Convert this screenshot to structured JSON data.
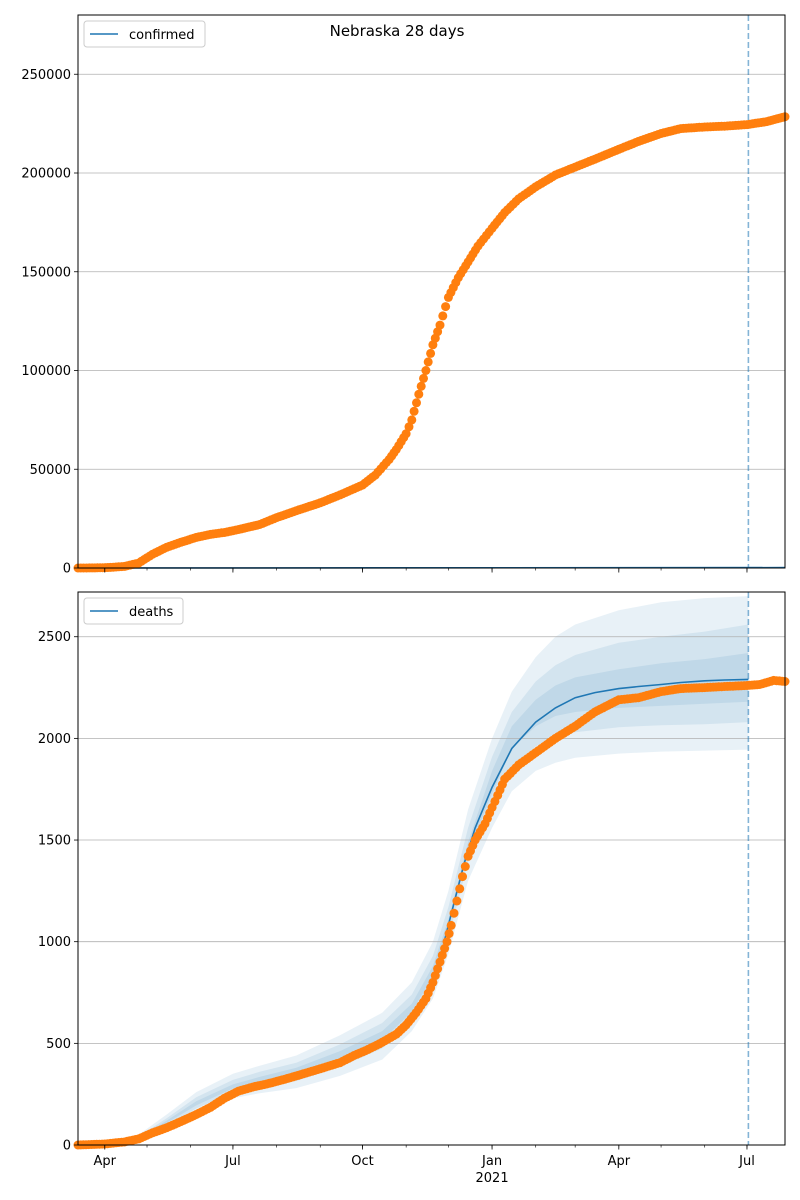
{
  "chart_data": {
    "type": "scatter",
    "title": "Nebraska 28 days",
    "x_ticks": [
      "Apr",
      "Jul",
      "Oct",
      "Jan",
      "Apr",
      "Jul"
    ],
    "x_tick_year": "2021",
    "x_range": [
      "2020-03-13",
      "2021-07-28"
    ],
    "forecast_date": "2021-07-02",
    "colors": {
      "observed": "#ff7f0e",
      "model": "#1f77b4",
      "band": "#1f77b4",
      "grid": "#b0b0b0",
      "forecast_line": "#1f77b4"
    },
    "panels": [
      {
        "metric": "confirmed",
        "legend": "confirmed",
        "ylim": [
          0,
          280000
        ],
        "yticks": [
          "0",
          "50000",
          "100000",
          "150000",
          "200000",
          "250000"
        ],
        "grid": "horizontal",
        "model_line": [
          [
            "2020-03-13",
            0
          ],
          [
            "2021-07-28",
            200
          ]
        ],
        "observed": [
          [
            "2020-03-13",
            0
          ],
          [
            "2020-03-25",
            50
          ],
          [
            "2020-04-05",
            300
          ],
          [
            "2020-04-15",
            800
          ],
          [
            "2020-04-25",
            2500
          ],
          [
            "2020-05-05",
            7000
          ],
          [
            "2020-05-15",
            10500
          ],
          [
            "2020-05-25",
            13000
          ],
          [
            "2020-06-05",
            15500
          ],
          [
            "2020-06-15",
            17000
          ],
          [
            "2020-06-25",
            18000
          ],
          [
            "2020-07-05",
            19500
          ],
          [
            "2020-07-20",
            22000
          ],
          [
            "2020-08-01",
            25500
          ],
          [
            "2020-08-15",
            29000
          ],
          [
            "2020-09-01",
            33000
          ],
          [
            "2020-09-15",
            37000
          ],
          [
            "2020-10-01",
            42000
          ],
          [
            "2020-10-10",
            47000
          ],
          [
            "2020-10-20",
            55000
          ],
          [
            "2020-10-25",
            60000
          ],
          [
            "2020-11-01",
            68000
          ],
          [
            "2020-11-05",
            75000
          ],
          [
            "2020-11-10",
            88000
          ],
          [
            "2020-11-15",
            100000
          ],
          [
            "2020-11-20",
            113000
          ],
          [
            "2020-11-25",
            123000
          ],
          [
            "2020-12-01",
            137000
          ],
          [
            "2020-12-08",
            147000
          ],
          [
            "2020-12-15",
            155000
          ],
          [
            "2020-12-22",
            163000
          ],
          [
            "2021-01-01",
            172000
          ],
          [
            "2021-01-10",
            180000
          ],
          [
            "2021-01-20",
            187000
          ],
          [
            "2021-02-01",
            193000
          ],
          [
            "2021-02-15",
            199000
          ],
          [
            "2021-03-01",
            203000
          ],
          [
            "2021-03-15",
            207000
          ],
          [
            "2021-04-01",
            212000
          ],
          [
            "2021-04-15",
            216000
          ],
          [
            "2021-05-01",
            220000
          ],
          [
            "2021-05-15",
            222500
          ],
          [
            "2021-06-01",
            223300
          ],
          [
            "2021-06-15",
            223700
          ],
          [
            "2021-07-01",
            224500
          ],
          [
            "2021-07-15",
            226000
          ],
          [
            "2021-07-28",
            228500
          ]
        ]
      },
      {
        "metric": "deaths",
        "legend": "deaths",
        "ylim": [
          0,
          2720
        ],
        "yticks": [
          "0",
          "500",
          "1000",
          "1500",
          "2000",
          "2500"
        ],
        "grid": "horizontal",
        "model_line": [
          [
            "2020-11-28",
            1000
          ],
          [
            "2020-12-05",
            1190
          ],
          [
            "2020-12-12",
            1380
          ],
          [
            "2020-12-20",
            1560
          ],
          [
            "2021-01-01",
            1760
          ],
          [
            "2021-01-15",
            1950
          ],
          [
            "2021-02-01",
            2080
          ],
          [
            "2021-02-15",
            2150
          ],
          [
            "2021-03-01",
            2200
          ],
          [
            "2021-03-15",
            2225
          ],
          [
            "2021-04-01",
            2245
          ],
          [
            "2021-04-15",
            2255
          ],
          [
            "2021-05-01",
            2265
          ],
          [
            "2021-05-15",
            2275
          ],
          [
            "2021-06-01",
            2283
          ],
          [
            "2021-06-15",
            2287
          ],
          [
            "2021-07-02",
            2290
          ]
        ],
        "bands": [
          {
            "level": "outer",
            "dates": [
              "2020-04-25",
              "2020-05-15",
              "2020-06-05",
              "2020-07-01",
              "2020-07-20",
              "2020-08-15",
              "2020-09-15",
              "2020-10-15",
              "2020-11-05",
              "2020-11-20",
              "2020-12-01",
              "2020-12-15",
              "2021-01-01",
              "2021-01-15",
              "2021-02-01",
              "2021-02-15",
              "2021-03-01",
              "2021-04-01",
              "2021-05-01",
              "2021-06-01",
              "2021-07-02"
            ],
            "upper": [
              50,
              150,
              260,
              350,
              390,
              440,
              540,
              650,
              800,
              1000,
              1250,
              1650,
              2000,
              2230,
              2400,
              2500,
              2560,
              2630,
              2670,
              2690,
              2700
            ],
            "lower": [
              20,
              80,
              160,
              230,
              255,
              280,
              340,
              420,
              560,
              720,
              940,
              1300,
              1560,
              1740,
              1840,
              1880,
              1905,
              1925,
              1935,
              1940,
              1945
            ]
          },
          {
            "level": "middle",
            "dates": [
              "2020-04-25",
              "2020-05-15",
              "2020-06-05",
              "2020-07-01",
              "2020-07-20",
              "2020-08-15",
              "2020-09-15",
              "2020-10-15",
              "2020-11-05",
              "2020-11-20",
              "2020-12-01",
              "2020-12-15",
              "2021-01-01",
              "2021-01-15",
              "2021-02-01",
              "2021-02-15",
              "2021-03-01",
              "2021-04-01",
              "2021-05-01",
              "2021-06-01",
              "2021-07-02"
            ],
            "upper": [
              42,
              132,
              235,
              320,
              360,
              405,
              495,
              600,
              740,
              930,
              1170,
              1560,
              1910,
              2130,
              2280,
              2360,
              2410,
              2470,
              2500,
              2525,
              2560
            ],
            "lower": [
              26,
              95,
              180,
              258,
              285,
              315,
              385,
              475,
              620,
              790,
              1020,
              1390,
              1660,
              1860,
              1960,
              2010,
              2030,
              2055,
              2065,
              2070,
              2080
            ]
          },
          {
            "level": "inner",
            "dates": [
              "2020-04-25",
              "2020-05-15",
              "2020-06-05",
              "2020-07-01",
              "2020-07-20",
              "2020-08-15",
              "2020-09-15",
              "2020-10-15",
              "2020-11-05",
              "2020-11-20",
              "2020-12-01",
              "2020-12-15",
              "2021-01-01",
              "2021-01-15",
              "2021-02-01",
              "2021-02-15",
              "2021-03-01",
              "2021-04-01",
              "2021-05-01",
              "2021-06-01",
              "2021-07-02"
            ],
            "upper": [
              36,
              120,
              215,
              298,
              335,
              380,
              462,
              560,
              695,
              880,
              1110,
              1490,
              1840,
              2060,
              2190,
              2260,
              2300,
              2340,
              2370,
              2390,
              2420
            ],
            "lower": [
              30,
              108,
              195,
              278,
              305,
              340,
              420,
              515,
              655,
              830,
              1060,
              1440,
              1730,
              1950,
              2060,
              2110,
              2130,
              2150,
              2160,
              2170,
              2180
            ]
          }
        ],
        "observed": [
          [
            "2020-03-13",
            0
          ],
          [
            "2020-04-01",
            5
          ],
          [
            "2020-04-15",
            15
          ],
          [
            "2020-04-25",
            30
          ],
          [
            "2020-05-05",
            60
          ],
          [
            "2020-05-15",
            85
          ],
          [
            "2020-05-25",
            115
          ],
          [
            "2020-06-05",
            150
          ],
          [
            "2020-06-15",
            185
          ],
          [
            "2020-06-25",
            230
          ],
          [
            "2020-07-05",
            265
          ],
          [
            "2020-07-15",
            285
          ],
          [
            "2020-07-25",
            300
          ],
          [
            "2020-08-05",
            320
          ],
          [
            "2020-08-20",
            350
          ],
          [
            "2020-09-01",
            375
          ],
          [
            "2020-09-15",
            405
          ],
          [
            "2020-09-25",
            440
          ],
          [
            "2020-10-05",
            470
          ],
          [
            "2020-10-15",
            505
          ],
          [
            "2020-10-25",
            545
          ],
          [
            "2020-11-01",
            590
          ],
          [
            "2020-11-08",
            650
          ],
          [
            "2020-11-15",
            720
          ],
          [
            "2020-11-20",
            800
          ],
          [
            "2020-11-25",
            900
          ],
          [
            "2020-11-30",
            1000
          ],
          [
            "2020-12-03",
            1080
          ],
          [
            "2020-12-07",
            1200
          ],
          [
            "2020-12-11",
            1320
          ],
          [
            "2020-12-15",
            1420
          ],
          [
            "2020-12-20",
            1500
          ],
          [
            "2020-12-27",
            1580
          ],
          [
            "2021-01-01",
            1660
          ],
          [
            "2021-01-05",
            1720
          ],
          [
            "2021-01-10",
            1800
          ],
          [
            "2021-01-20",
            1870
          ],
          [
            "2021-02-01",
            1930
          ],
          [
            "2021-02-15",
            2000
          ],
          [
            "2021-03-01",
            2060
          ],
          [
            "2021-03-15",
            2130
          ],
          [
            "2021-04-01",
            2190
          ],
          [
            "2021-04-15",
            2200
          ],
          [
            "2021-05-01",
            2230
          ],
          [
            "2021-05-15",
            2245
          ],
          [
            "2021-06-01",
            2250
          ],
          [
            "2021-06-15",
            2255
          ],
          [
            "2021-07-01",
            2260
          ],
          [
            "2021-07-10",
            2265
          ],
          [
            "2021-07-20",
            2285
          ],
          [
            "2021-07-28",
            2280
          ]
        ]
      }
    ]
  }
}
